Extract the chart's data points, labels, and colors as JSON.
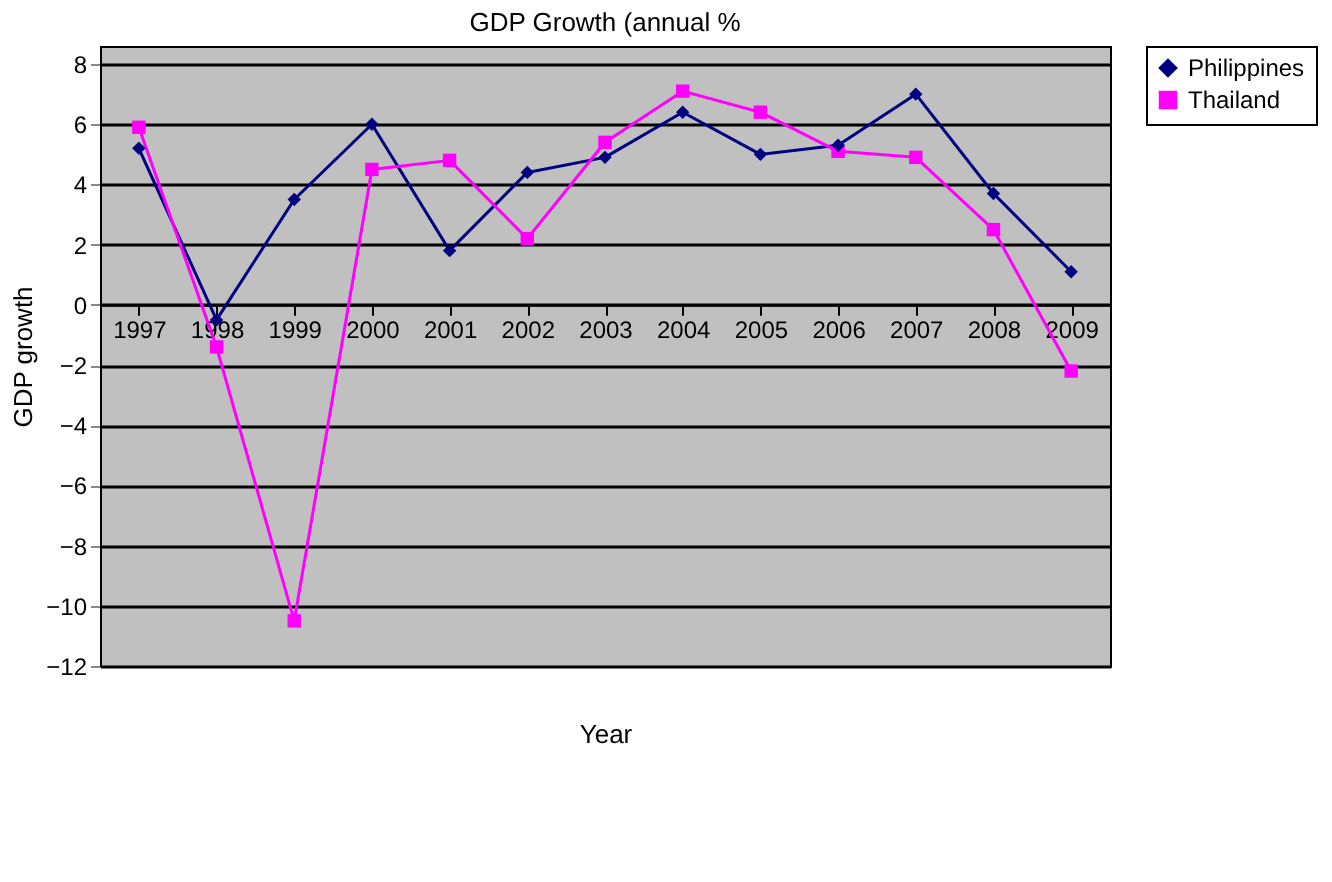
{
  "chart_data": {
    "type": "line",
    "title": "GDP Growth (annual %",
    "xlabel": "Year",
    "ylabel": "GDP growth",
    "categories": [
      "1997",
      "1998",
      "1999",
      "2000",
      "2001",
      "2002",
      "2003",
      "2004",
      "2005",
      "2006",
      "2007",
      "2008",
      "2009"
    ],
    "series": [
      {
        "name": "Philippines",
        "color": "#000080",
        "marker": "diamond",
        "values": [
          5.2,
          -0.5,
          3.5,
          6.0,
          1.8,
          4.4,
          4.9,
          6.4,
          5.0,
          5.3,
          7.0,
          3.7,
          1.1
        ]
      },
      {
        "name": "Thailand",
        "color": "#ff00ff",
        "marker": "square",
        "values": [
          5.9,
          -1.4,
          -10.5,
          4.5,
          4.8,
          2.2,
          5.4,
          7.1,
          6.4,
          5.1,
          4.9,
          2.5,
          -2.2
        ]
      }
    ],
    "ylim": [
      -12,
      8.6
    ],
    "yticks": [
      -12,
      -10,
      -8,
      -6,
      -4,
      -2,
      0,
      2,
      4,
      6,
      8
    ],
    "grid": "y",
    "legend": "right"
  }
}
